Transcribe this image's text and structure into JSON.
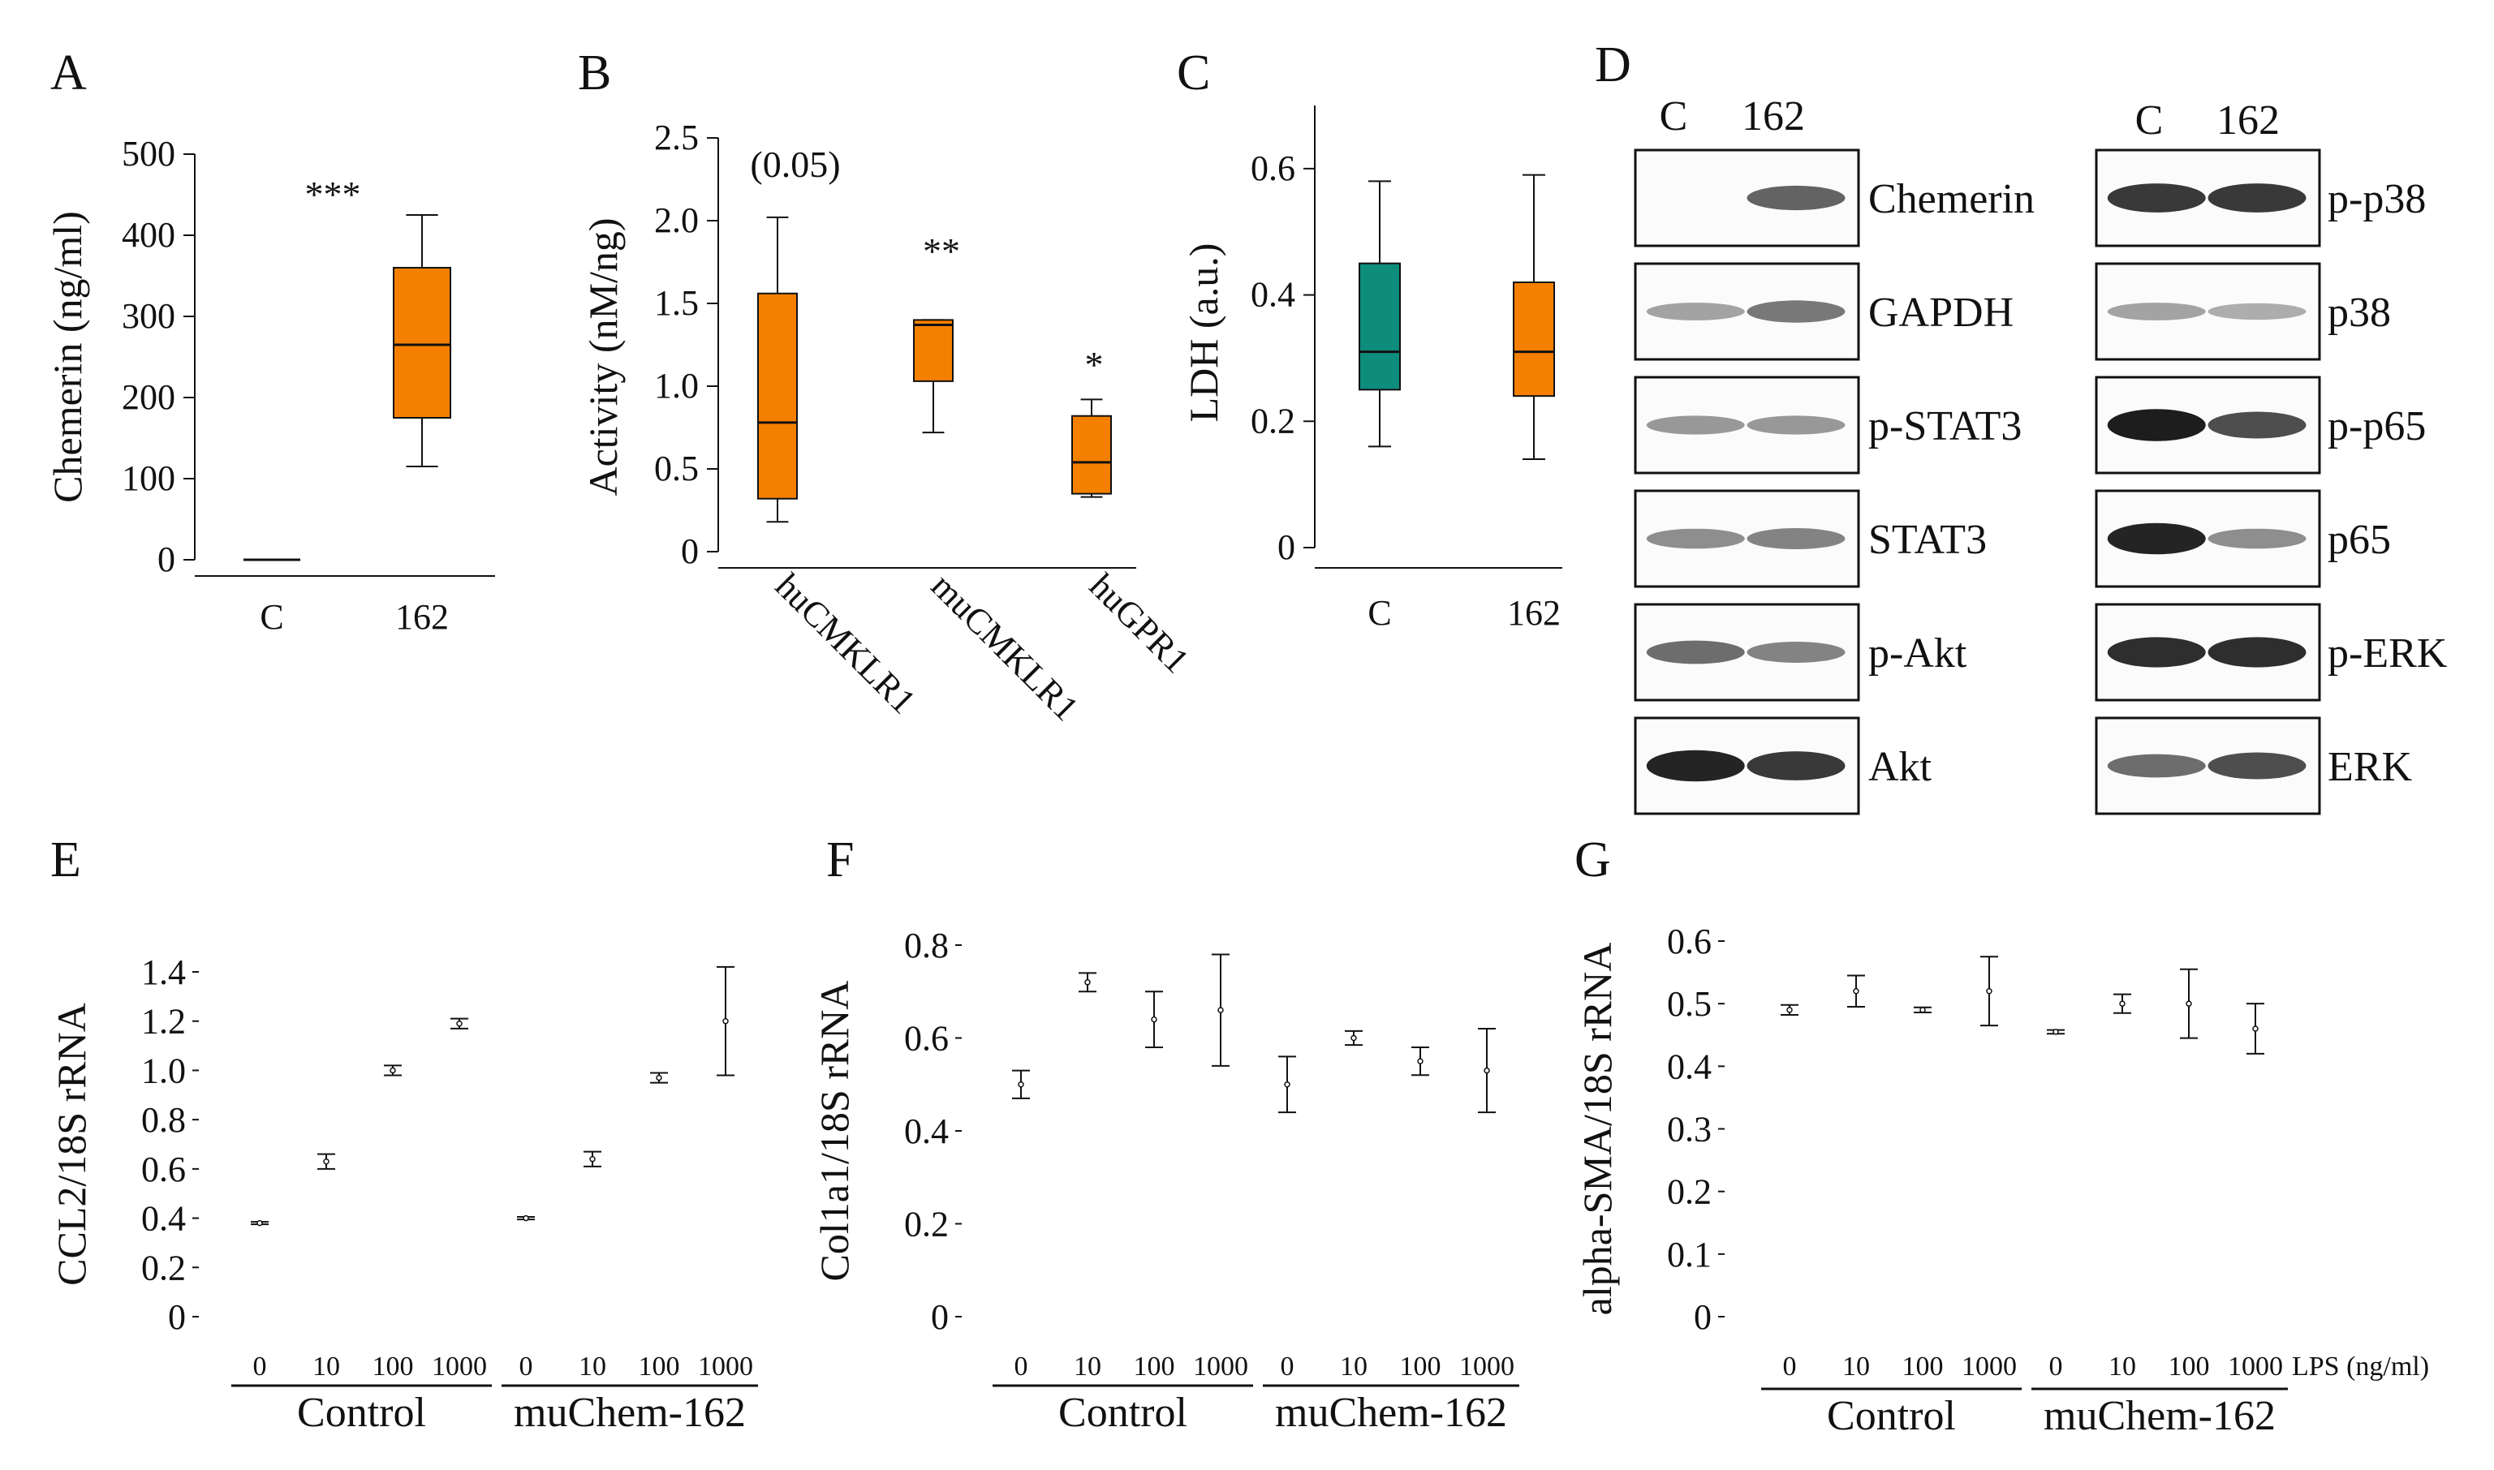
{
  "colors": {
    "orange": "#F58000",
    "teal": "#0E8C7C",
    "ink": "#111111"
  },
  "chart_data": [
    {
      "panel": "A",
      "type": "box",
      "xlabel": "",
      "ylabel": "Chemerin (ng/ml)",
      "ylim": [
        0,
        500
      ],
      "yticks": [
        0,
        100,
        200,
        300,
        400,
        500
      ],
      "categories": [
        "C",
        "162"
      ],
      "boxes": [
        {
          "category": "C",
          "min": 0,
          "q1": 0,
          "median": 0,
          "q3": 0,
          "max": 0
        },
        {
          "category": "162",
          "min": 115,
          "q1": 175,
          "median": 265,
          "q3": 360,
          "max": 425
        }
      ],
      "annotations": [
        {
          "text": "***"
        }
      ]
    },
    {
      "panel": "B",
      "type": "box",
      "ylabel": "Activity (nM/ng)",
      "ylim": [
        0,
        2.5
      ],
      "yticks": [
        "0",
        "0.5",
        "1.0",
        "1.5",
        "2.0",
        "2.5"
      ],
      "categories": [
        "huCMKLR1",
        "muCMKLR1",
        "huGPR1"
      ],
      "boxes": [
        {
          "category": "huCMKLR1",
          "min": 0.18,
          "q1": 0.32,
          "median": 0.78,
          "q3": 1.56,
          "max": 2.02
        },
        {
          "category": "muCMKLR1",
          "min": 0.72,
          "q1": 1.03,
          "median": 1.37,
          "q3": 1.4,
          "max": 1.4
        },
        {
          "category": "huGPR1",
          "min": 0.33,
          "q1": 0.35,
          "median": 0.54,
          "q3": 0.82,
          "max": 0.92
        }
      ],
      "annotations": [
        "(0.05)",
        "**",
        "*"
      ]
    },
    {
      "panel": "C",
      "type": "box",
      "ylabel": "LDH (a.u.)",
      "ylim": [
        0,
        0.7
      ],
      "yticks": [
        "0",
        "0.2",
        "0.4",
        "0.6"
      ],
      "categories": [
        "C",
        "162"
      ],
      "boxes": [
        {
          "category": "C",
          "min": 0.16,
          "q1": 0.25,
          "median": 0.31,
          "q3": 0.45,
          "max": 0.58,
          "color": "teal"
        },
        {
          "category": "162",
          "min": 0.14,
          "q1": 0.24,
          "median": 0.31,
          "q3": 0.42,
          "max": 0.59,
          "color": "orange"
        }
      ]
    },
    {
      "panel": "E",
      "type": "scatter",
      "ylabel": "CCL2/18S rRNA",
      "ylim": [
        0,
        1.4
      ],
      "yticks": [
        "0",
        "0.2",
        "0.4",
        "0.6",
        "0.8",
        "1.0",
        "1.2",
        "1.4"
      ],
      "x": [
        "0",
        "10",
        "100",
        "1000",
        "0",
        "10",
        "100",
        "1000"
      ],
      "groups": [
        "Control",
        "muChem-162"
      ],
      "means": [
        0.38,
        0.63,
        1.0,
        1.19,
        0.4,
        0.64,
        0.97,
        1.2
      ],
      "errors": [
        0.005,
        0.03,
        0.02,
        0.02,
        0.005,
        0.03,
        0.02,
        0.22
      ]
    },
    {
      "panel": "F",
      "type": "scatter",
      "ylabel": "Col1a1/18S rRNA",
      "ylim": [
        0,
        0.8
      ],
      "yticks": [
        "0",
        "0.2",
        "0.4",
        "0.6",
        "0.8"
      ],
      "x": [
        "0",
        "10",
        "100",
        "1000",
        "0",
        "10",
        "100",
        "1000"
      ],
      "groups": [
        "Control",
        "muChem-162"
      ],
      "means": [
        0.5,
        0.72,
        0.64,
        0.66,
        0.5,
        0.6,
        0.55,
        0.53
      ],
      "errors": [
        0.03,
        0.02,
        0.06,
        0.12,
        0.06,
        0.015,
        0.03,
        0.09
      ]
    },
    {
      "panel": "G",
      "type": "scatter",
      "ylabel": "alpha-SMA/18S rRNA",
      "ylim": [
        0,
        0.6
      ],
      "yticks": [
        "0",
        "0.1",
        "0.2",
        "0.3",
        "0.4",
        "0.5",
        "0.6"
      ],
      "x": [
        "0",
        "10",
        "100",
        "1000",
        "0",
        "10",
        "100",
        "1000"
      ],
      "x_unit": "LPS (ng/ml)",
      "groups": [
        "Control",
        "muChem-162"
      ],
      "means": [
        0.49,
        0.52,
        0.49,
        0.52,
        0.455,
        0.5,
        0.5,
        0.46
      ],
      "errors": [
        0.008,
        0.025,
        0.004,
        0.055,
        0.003,
        0.015,
        0.055,
        0.04
      ]
    }
  ],
  "panel_letters": [
    "A",
    "B",
    "C",
    "D",
    "E",
    "F",
    "G"
  ],
  "western_blot": {
    "panel": "D",
    "left_columns": [
      "C",
      "162"
    ],
    "right_columns": [
      "C",
      "162"
    ],
    "left_blots": [
      {
        "label": "Chemerin",
        "left": 0.0,
        "right": 0.65
      },
      {
        "label": "GAPDH",
        "left": 0.35,
        "right": 0.55
      },
      {
        "label": "p-STAT3",
        "left": 0.4,
        "right": 0.4
      },
      {
        "label": "STAT3",
        "left": 0.45,
        "right": 0.5
      },
      {
        "label": "p-Akt",
        "left": 0.6,
        "right": 0.5
      },
      {
        "label": "Akt",
        "left": 0.95,
        "right": 0.85
      }
    ],
    "right_blots": [
      {
        "label": "p-p38",
        "left": 0.85,
        "right": 0.85
      },
      {
        "label": "p38",
        "left": 0.35,
        "right": 0.3
      },
      {
        "label": "p-p65",
        "left": 0.98,
        "right": 0.75
      },
      {
        "label": "p65",
        "left": 0.95,
        "right": 0.45
      },
      {
        "label": "p-ERK",
        "left": 0.9,
        "right": 0.9
      },
      {
        "label": "ERK",
        "left": 0.6,
        "right": 0.75
      }
    ]
  }
}
